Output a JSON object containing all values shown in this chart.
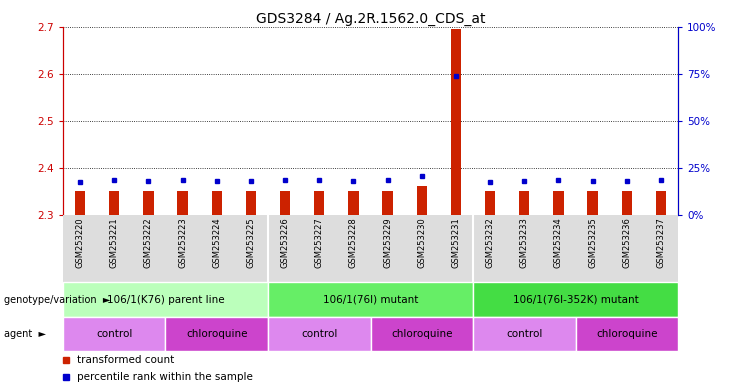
{
  "title": "GDS3284 / Ag.2R.1562.0_CDS_at",
  "samples": [
    "GSM253220",
    "GSM253221",
    "GSM253222",
    "GSM253223",
    "GSM253224",
    "GSM253225",
    "GSM253226",
    "GSM253227",
    "GSM253228",
    "GSM253229",
    "GSM253230",
    "GSM253231",
    "GSM253232",
    "GSM253233",
    "GSM253234",
    "GSM253235",
    "GSM253236",
    "GSM253237"
  ],
  "red_values": [
    2.352,
    2.352,
    2.352,
    2.352,
    2.352,
    2.352,
    2.352,
    2.352,
    2.352,
    2.352,
    2.362,
    2.695,
    2.352,
    2.352,
    2.352,
    2.352,
    2.352,
    2.352
  ],
  "blue_values": [
    2.371,
    2.375,
    2.372,
    2.375,
    2.373,
    2.372,
    2.374,
    2.375,
    2.373,
    2.374,
    2.383,
    2.596,
    2.37,
    2.373,
    2.375,
    2.372,
    2.373,
    2.375
  ],
  "ymin": 2.3,
  "ymax": 2.7,
  "yticks_left": [
    2.3,
    2.4,
    2.5,
    2.6,
    2.7
  ],
  "yticks_right": [
    0,
    25,
    50,
    75,
    100
  ],
  "bar_color": "#cc2200",
  "marker_color": "#0000cc",
  "bar_bottom": 2.3,
  "genotype_groups": [
    {
      "label": "106/1(K76) parent line",
      "start": 0,
      "end": 6,
      "color": "#bbffbb"
    },
    {
      "label": "106/1(76I) mutant",
      "start": 6,
      "end": 12,
      "color": "#66ee66"
    },
    {
      "label": "106/1(76I-352K) mutant",
      "start": 12,
      "end": 18,
      "color": "#44dd44"
    }
  ],
  "agent_groups": [
    {
      "label": "control",
      "start": 0,
      "end": 3,
      "color": "#dd88ee"
    },
    {
      "label": "chloroquine",
      "start": 3,
      "end": 6,
      "color": "#cc44cc"
    },
    {
      "label": "control",
      "start": 6,
      "end": 9,
      "color": "#dd88ee"
    },
    {
      "label": "chloroquine",
      "start": 9,
      "end": 12,
      "color": "#cc44cc"
    },
    {
      "label": "control",
      "start": 12,
      "end": 15,
      "color": "#dd88ee"
    },
    {
      "label": "chloroquine",
      "start": 15,
      "end": 18,
      "color": "#cc44cc"
    }
  ],
  "bg_color": "#ffffff",
  "left_axis_color": "#cc0000",
  "right_axis_color": "#0000cc",
  "tick_fontsize": 7.5,
  "label_fontsize": 8,
  "sample_label_fontsize": 6,
  "bar_width": 0.3
}
